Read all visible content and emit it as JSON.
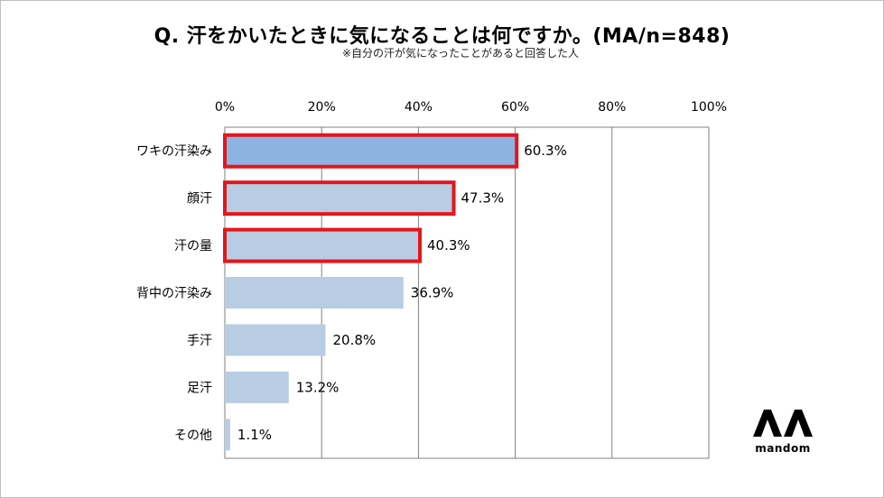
{
  "title": "Q. 汗をかいたときに気になることは何ですか。(MA/n=848)",
  "subtitle": "※自分の汗が気になったことがあると回答した人",
  "brand": {
    "name": "mandom"
  },
  "colors": {
    "highlight_bar": "#8db3e2",
    "bar": "#b8cce4",
    "highlight_border": "#e3161b",
    "grid": "#808080"
  },
  "chart_data": {
    "type": "bar",
    "orientation": "horizontal",
    "categories": [
      "ワキの汗染み",
      "顔汗",
      "汗の量",
      "背中の汗染み",
      "手汗",
      "足汗",
      "その他"
    ],
    "values": [
      60.3,
      47.3,
      40.3,
      36.9,
      20.8,
      13.2,
      1.1
    ],
    "value_labels": [
      "60.3%",
      "47.3%",
      "40.3%",
      "36.9%",
      "20.8%",
      "13.2%",
      "1.1%"
    ],
    "highlighted": [
      true,
      true,
      true,
      false,
      false,
      false,
      false
    ],
    "xlim": [
      0,
      100
    ],
    "x_ticks": [
      "0%",
      "20%",
      "40%",
      "60%",
      "80%",
      "100%"
    ],
    "x_tick_values": [
      0,
      20,
      40,
      60,
      80,
      100
    ],
    "grid": true,
    "axis_position": "top"
  }
}
